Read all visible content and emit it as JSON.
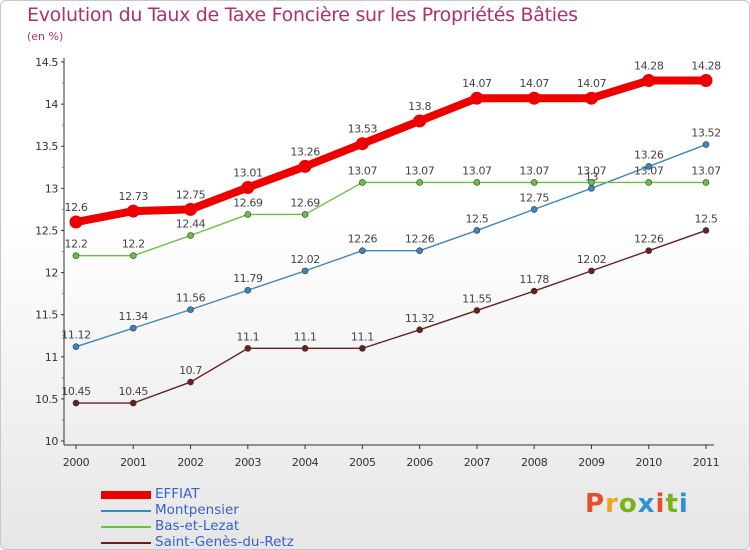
{
  "header": {
    "title": "Evolution du Taux de Taxe Foncière sur les Propriétés Bâties",
    "unit": "(en %)"
  },
  "logo": {
    "text": "Proxiti",
    "colors": [
      "#e84c2b",
      "#f2a31b",
      "#7ab317",
      "#2f8fd8",
      "#e84c2b",
      "#7ab317",
      "#2f8fd8"
    ]
  },
  "chart_data": {
    "type": "line",
    "title": "Evolution du Taux de Taxe Foncière sur les Propriétés Bâties",
    "ylabel": "(en %)",
    "xlabel": "",
    "categories": [
      "2000",
      "2001",
      "2002",
      "2003",
      "2004",
      "2005",
      "2006",
      "2007",
      "2008",
      "2009",
      "2010",
      "2011"
    ],
    "ylim": [
      10,
      14.5
    ],
    "yticks": [
      "10",
      "10.5",
      "11",
      "11.5",
      "12",
      "12.5",
      "13",
      "13.5",
      "14",
      "14.5"
    ],
    "grid": false,
    "legend_position": "bottom-left",
    "series": [
      {
        "name": "EFFIAT",
        "color": "#ee0000",
        "values": [
          12.6,
          12.73,
          12.75,
          13.01,
          13.26,
          13.53,
          13.8,
          14.07,
          14.07,
          14.07,
          14.28,
          14.28
        ],
        "labels": [
          "12.6",
          "12.73",
          "12.75",
          "13.01",
          "13.26",
          "13.53",
          "13.8",
          "14.07",
          "14.07",
          "14.07",
          "14.28",
          "14.28"
        ]
      },
      {
        "name": "Montpensier",
        "color": "#3b87c6",
        "values": [
          11.12,
          11.34,
          11.56,
          11.79,
          12.02,
          12.26,
          12.26,
          12.5,
          12.75,
          13.0,
          13.26,
          13.52
        ],
        "labels": [
          "11.12",
          "11.34",
          "11.56",
          "11.79",
          "12.02",
          "12.26",
          "12.26",
          "12.5",
          "12.75",
          "13",
          "13.26",
          "13.52"
        ]
      },
      {
        "name": "Bas-et-Lezat",
        "color": "#66c33a",
        "values": [
          12.2,
          12.2,
          12.44,
          12.69,
          12.69,
          13.07,
          13.07,
          13.07,
          13.07,
          13.07,
          13.07,
          13.07
        ],
        "labels": [
          "12.2",
          "12.2",
          "12.44",
          "12.69",
          "12.69",
          "13.07",
          "13.07",
          "13.07",
          "13.07",
          "13.07",
          "13.07",
          "13.07"
        ]
      },
      {
        "name": "Saint-Genès-du-Retz",
        "color": "#6b1f1f",
        "values": [
          10.45,
          10.45,
          10.7,
          11.1,
          11.1,
          11.1,
          11.32,
          11.55,
          11.78,
          12.02,
          12.26,
          12.5
        ],
        "labels": [
          "10.45",
          "10.45",
          "10.7",
          "11.1",
          "11.1",
          "11.1",
          "11.32",
          "11.55",
          "11.78",
          "12.02",
          "12.26",
          "12.5"
        ]
      }
    ]
  }
}
